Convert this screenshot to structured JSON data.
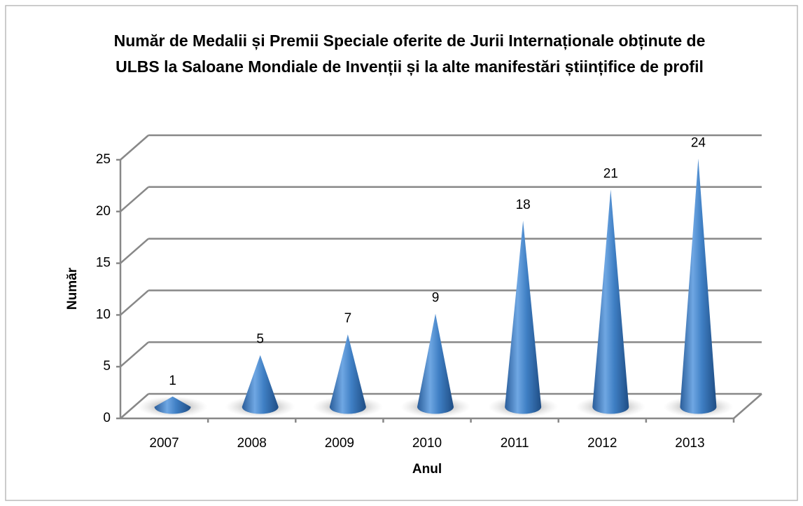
{
  "chart_data": {
    "type": "cone",
    "title": "Număr de Medalii și Premii Speciale oferite de Jurii Internaționale obținute de ULBS la Saloane Mondiale de Invenții și la alte manifestări științifice de profil",
    "x_label": "Anul",
    "y_label": "Număr",
    "categories": [
      "2007",
      "2008",
      "2009",
      "2010",
      "2011",
      "2012",
      "2013"
    ],
    "values": [
      1,
      5,
      7,
      9,
      18,
      21,
      24
    ],
    "color": "#3f7fc4",
    "ylim": [
      0,
      25
    ],
    "yticks": [
      0,
      5,
      10,
      15,
      20,
      25
    ],
    "grid": true
  }
}
